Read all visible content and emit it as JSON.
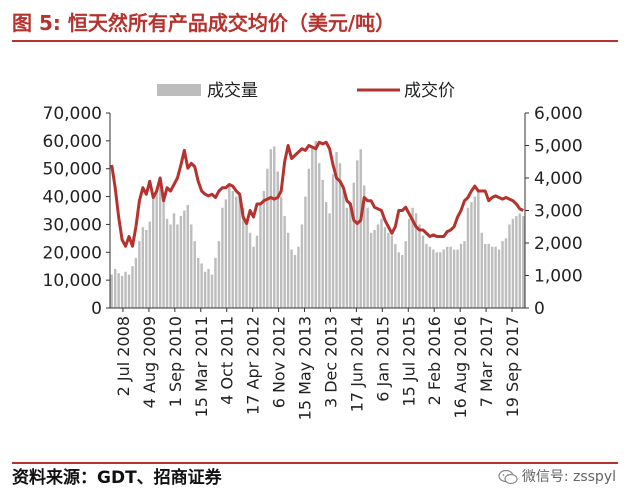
{
  "header": {
    "title": "图 5: 恒天然所有产品成交均价（美元/吨）"
  },
  "footer": {
    "source": "资料来源：GDT、招商证券"
  },
  "watermark": {
    "text": "微信号: zsspyl"
  },
  "colors": {
    "accent": "#b5332e",
    "bars": "#bdbdbd",
    "line": "#b5332e"
  },
  "chart_data": {
    "type": "bar+line",
    "title": "恒天然所有产品成交均价（美元/吨）",
    "legend": [
      "成交量",
      "成交价"
    ],
    "left_axis": {
      "label": "成交量",
      "ylim": [
        0,
        70000
      ],
      "ticks": [
        "70,000",
        "60,000",
        "50,000",
        "40,000",
        "30,000",
        "20,000",
        "10,000",
        "0"
      ]
    },
    "right_axis": {
      "label": "成交价",
      "ylim": [
        0,
        6000
      ],
      "ticks": [
        "6,000",
        "5,000",
        "4,000",
        "3,000",
        "2,000",
        "1,000",
        "0"
      ]
    },
    "x_tick_labels": [
      "2 Jul 2008",
      "4 Aug 2009",
      "1 Sep 2010",
      "15 Mar 2011",
      "4 Oct 2011",
      "17 Apr 2012",
      "6 Nov 2012",
      "15 May 2013",
      "3 Dec 2013",
      "17 Jun 2014",
      "6 Jan 2015",
      "15 Jul 2015",
      "2 Feb 2016",
      "16 Aug 2016",
      "7 Mar 2017",
      "19 Sep 2017"
    ],
    "series": [
      {
        "name": "成交量",
        "axis": "left",
        "values": [
          12000,
          14000,
          12500,
          11500,
          13000,
          12000,
          15000,
          18000,
          24000,
          29000,
          28000,
          31000,
          40000,
          43000,
          44000,
          41000,
          32000,
          30000,
          34000,
          30000,
          33000,
          35000,
          37000,
          30000,
          24000,
          18000,
          16000,
          13000,
          14000,
          12000,
          18000,
          24000,
          36000,
          39000,
          44000,
          42000,
          40000,
          40000,
          36000,
          30000,
          27000,
          22000,
          26000,
          38000,
          42000,
          50000,
          57000,
          58000,
          49000,
          40000,
          33000,
          27000,
          21000,
          19000,
          22000,
          30000,
          40000,
          50000,
          58000,
          60000,
          52000,
          46000,
          38000,
          34000,
          48000,
          56000,
          52000,
          42000,
          36000,
          38000,
          45000,
          53000,
          57000,
          44000,
          36000,
          27000,
          28000,
          30000,
          32000,
          29000,
          27000,
          26000,
          23000,
          20000,
          19000,
          24000,
          32000,
          36000,
          34000,
          30000,
          26000,
          23000,
          22000,
          21000,
          20000,
          20000,
          21000,
          22000,
          22000,
          21000,
          21000,
          23000,
          24000,
          36000,
          38000,
          40000,
          42000,
          27000,
          23000,
          23000,
          22000,
          22000,
          21000,
          24000,
          25000,
          30000,
          32000,
          33000,
          34000,
          33000
        ]
      },
      {
        "name": "成交价",
        "axis": "right",
        "values": [
          4400,
          3700,
          2800,
          2100,
          1900,
          2200,
          1900,
          2500,
          3300,
          3700,
          3500,
          3900,
          3400,
          3600,
          4000,
          3300,
          3700,
          3600,
          3800,
          4000,
          4400,
          4850,
          4300,
          4450,
          4350,
          3900,
          3600,
          3500,
          3450,
          3500,
          3400,
          3600,
          3700,
          3700,
          3800,
          3750,
          3600,
          3500,
          2800,
          2600,
          3000,
          2800,
          3200,
          3200,
          3300,
          3350,
          3400,
          3350,
          3400,
          3600,
          4500,
          5000,
          4600,
          4700,
          4800,
          4900,
          4850,
          5000,
          4950,
          4900,
          5100,
          5050,
          5100,
          4900,
          4400,
          4000,
          3900,
          3700,
          3300,
          3200,
          2700,
          2600,
          2700,
          3400,
          3300,
          3300,
          3100,
          3050,
          3000,
          2700,
          2500,
          2300,
          2500,
          3000,
          3000,
          3100,
          2900,
          2700,
          2500,
          2400,
          2400,
          2300,
          2200,
          2250,
          2200,
          2200,
          2200,
          2350,
          2400,
          2500,
          2800,
          3000,
          3300,
          3400,
          3600,
          3750,
          3600,
          3600,
          3600,
          3300,
          3400,
          3450,
          3400,
          3350,
          3400,
          3350,
          3300,
          3200,
          3050,
          3000
        ]
      }
    ]
  }
}
